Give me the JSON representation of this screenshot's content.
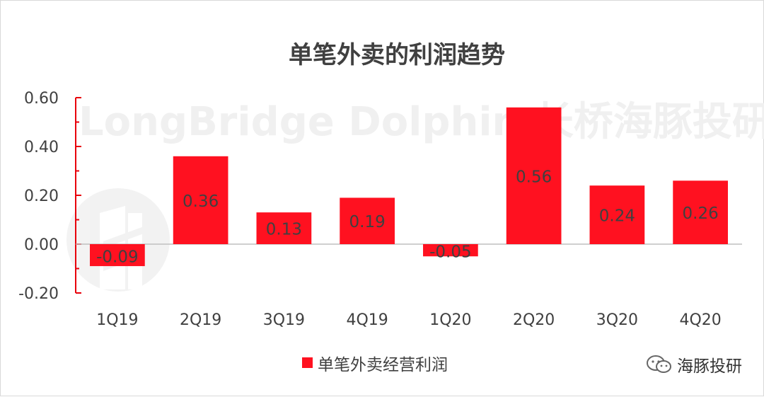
{
  "chart_data": {
    "type": "bar",
    "title": "单笔外卖的利润趋势",
    "categories": [
      "1Q19",
      "2Q19",
      "3Q19",
      "4Q19",
      "1Q20",
      "2Q20",
      "3Q20",
      "4Q20"
    ],
    "series": [
      {
        "name": "单笔外卖经营利润",
        "values": [
          -0.09,
          0.36,
          0.13,
          0.19,
          -0.05,
          0.56,
          0.24,
          0.26
        ],
        "data_labels": [
          "-0.09",
          "0.36",
          "0.13",
          "0.19",
          "-0.05",
          "0.56",
          "0.24",
          "0.26"
        ],
        "color": "#ff1120"
      }
    ],
    "ylim": [
      -0.2,
      0.6
    ],
    "yticks": [
      0.6,
      0.4,
      0.2,
      0.0,
      -0.2
    ],
    "ytick_labels": [
      "0.60",
      "0.40",
      "0.20",
      "0.00",
      "-0.20"
    ],
    "grid": false,
    "legend_position": "bottom",
    "axis_color": "#e8000b",
    "zero_line_color": "#bfbfbf"
  },
  "watermark": {
    "text": "LongBridge Dolphin 长桥海豚投研",
    "logo_icon": "longbridge-logo-icon"
  },
  "footer": {
    "brand_text": "海豚投研",
    "icon": "wechat-icon"
  }
}
